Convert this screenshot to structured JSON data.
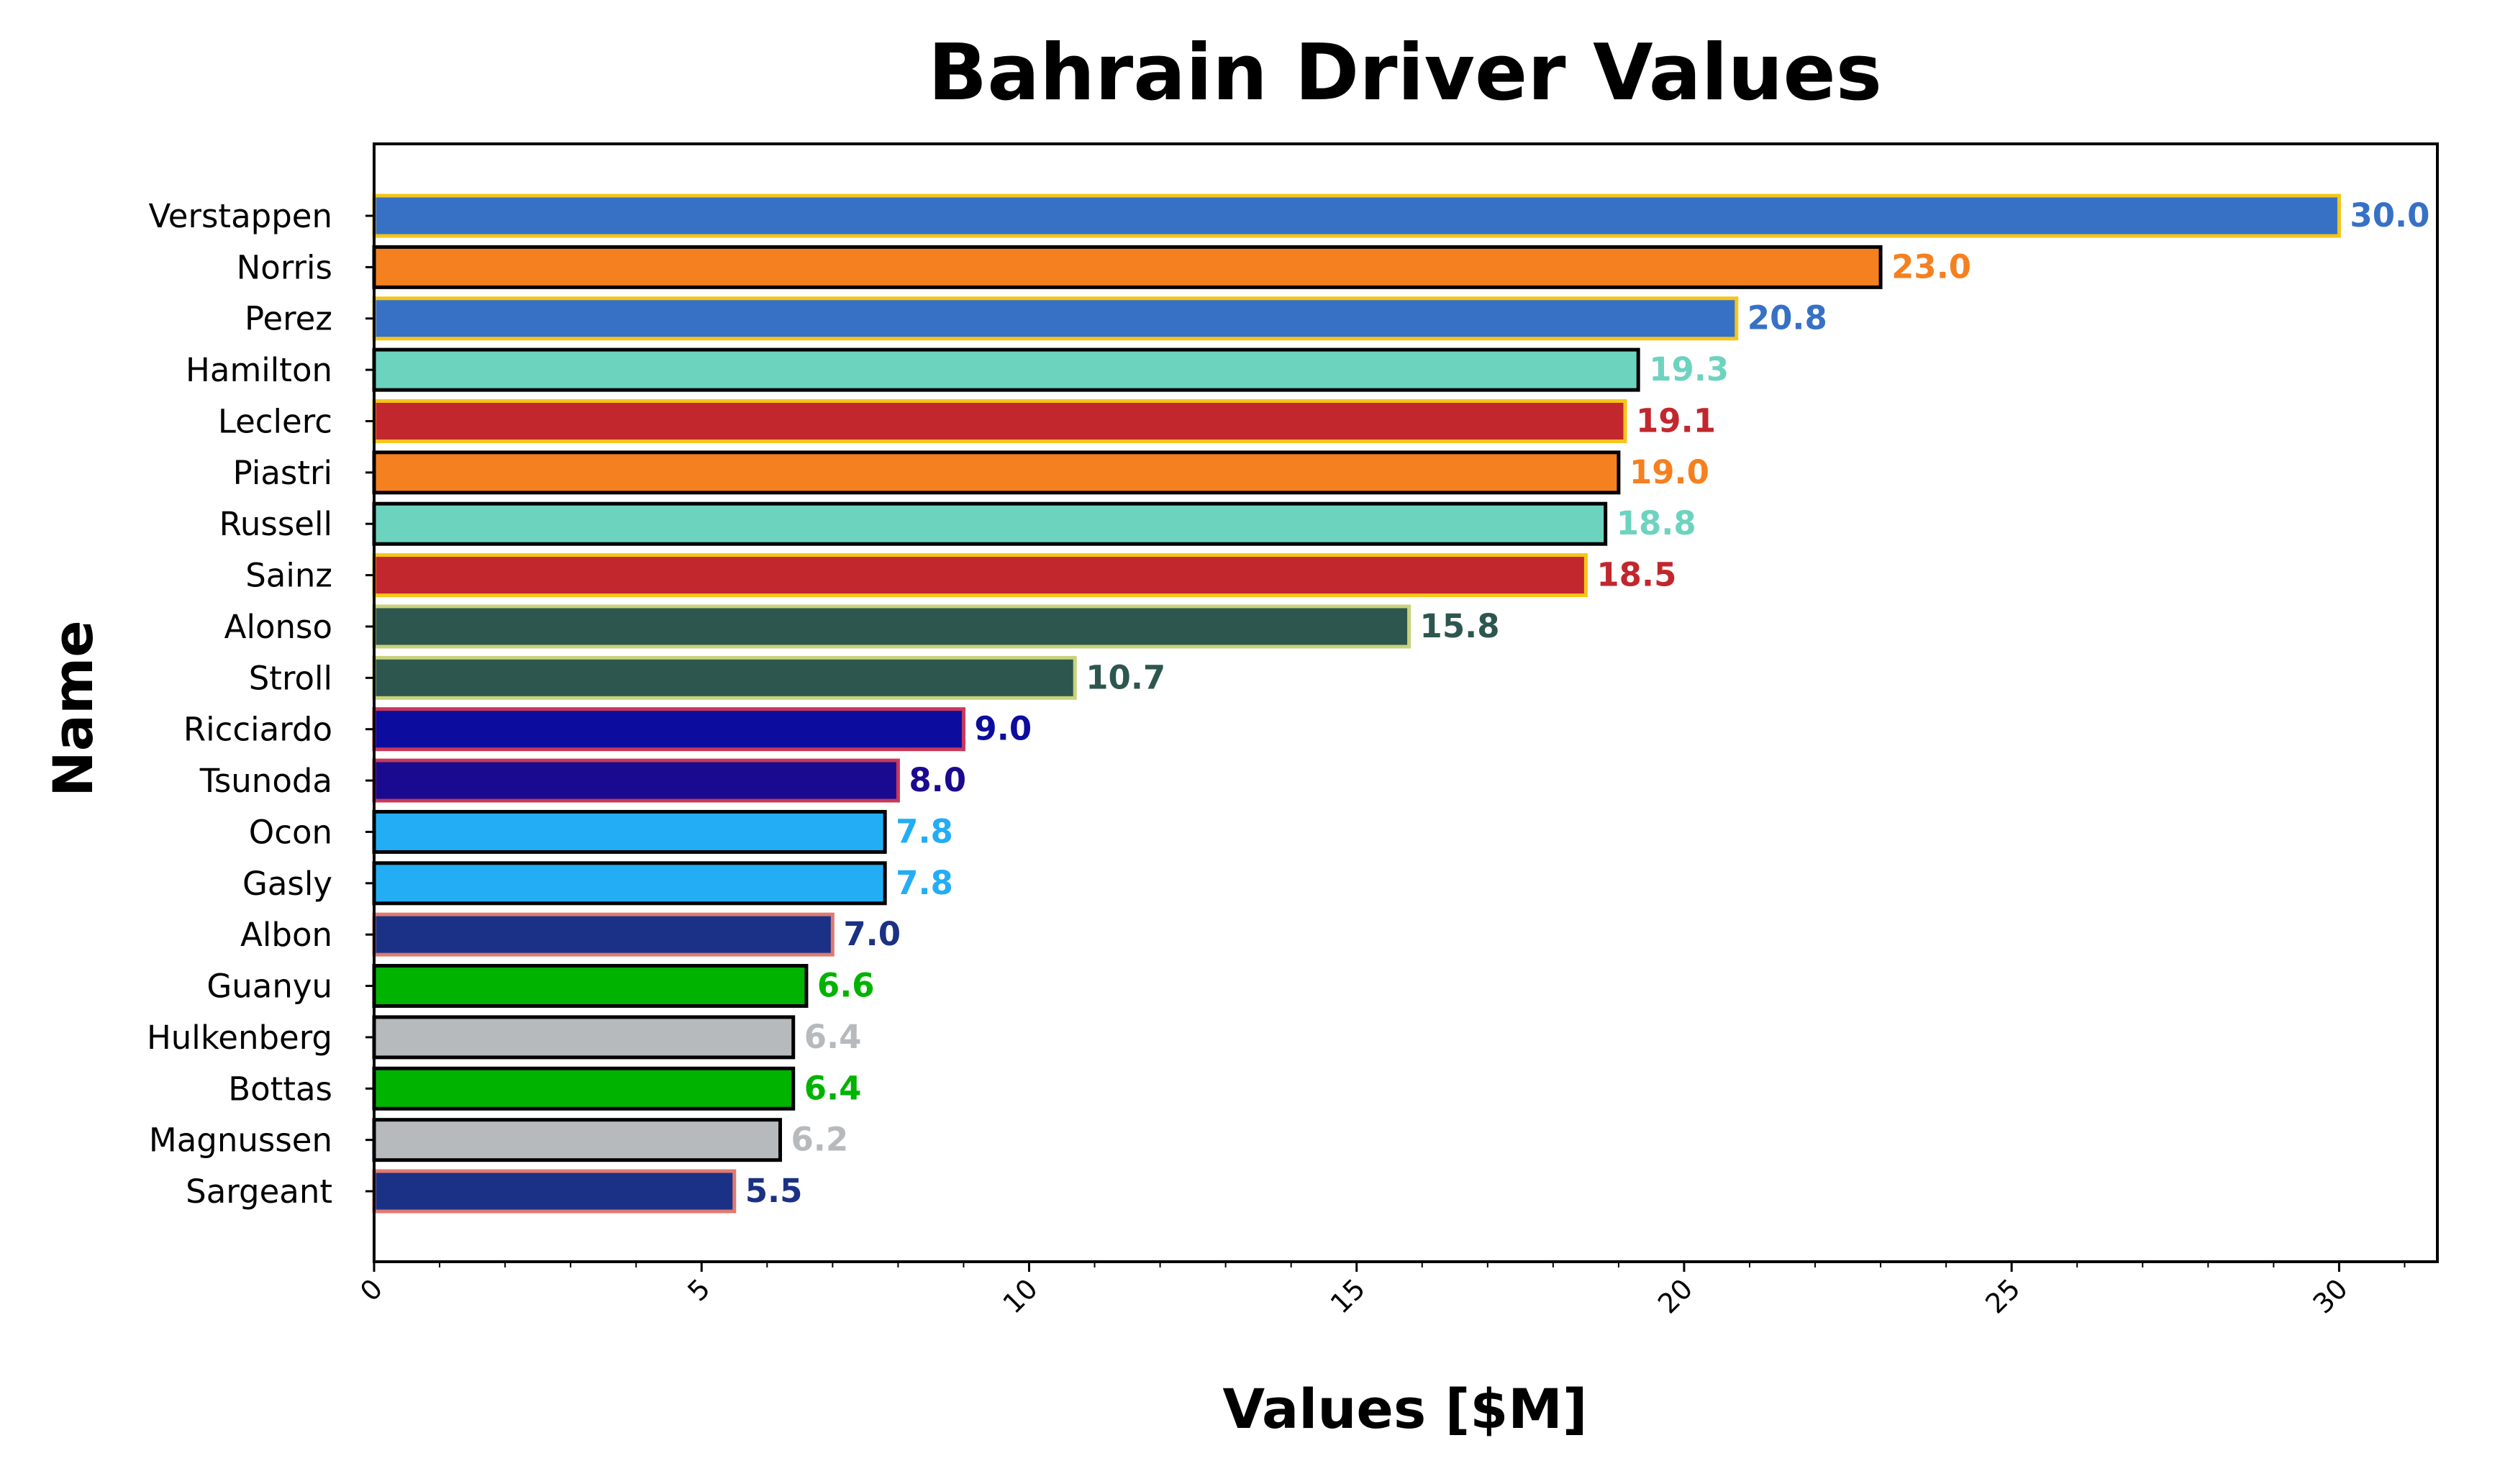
{
  "chart_data": {
    "type": "bar",
    "orientation": "horizontal",
    "title": "Bahrain Driver Values",
    "xlabel": "Values [$M]",
    "ylabel": "Name",
    "xlim": [
      0,
      31.5
    ],
    "xticks": [
      "0",
      "5",
      "10",
      "15",
      "20",
      "25",
      "30"
    ],
    "grid": false,
    "categories": [
      "Verstappen",
      "Norris",
      "Perez",
      "Hamilton",
      "Leclerc",
      "Piastri",
      "Russell",
      "Sainz",
      "Alonso",
      "Stroll",
      "Ricciardo",
      "Tsunoda",
      "Ocon",
      "Gasly",
      "Albon",
      "Guanyu",
      "Hulkenberg",
      "Bottas",
      "Magnussen",
      "Sargeant"
    ],
    "values": [
      30.0,
      23.0,
      20.8,
      19.3,
      19.1,
      19.0,
      18.8,
      18.5,
      15.8,
      10.7,
      9.0,
      8.0,
      7.8,
      7.8,
      7.0,
      6.6,
      6.4,
      6.4,
      6.2,
      5.5
    ],
    "value_labels": [
      "30.0",
      "23.0",
      "20.8",
      "19.3",
      "19.1",
      "19.0",
      "18.8",
      "18.5",
      "15.8",
      "10.7",
      "9.0",
      "8.0",
      "7.8",
      "7.8",
      "7.0",
      "6.6",
      "6.4",
      "6.4",
      "6.2",
      "5.5"
    ],
    "fill_colors": [
      "#3671C6",
      "#F58020",
      "#3671C6",
      "#6CD3BF",
      "#C1272D",
      "#F58020",
      "#6CD3BF",
      "#C1272D",
      "#2D564F",
      "#2D564F",
      "#0C0C9F",
      "#1A0A8F",
      "#22ADF5",
      "#22ADF5",
      "#1B3185",
      "#00B300",
      "#B6BABD",
      "#00B300",
      "#B6BABD",
      "#1B3185"
    ],
    "edge_colors": [
      "#F5C518",
      "#000000",
      "#F5C518",
      "#000000",
      "#F5C518",
      "#000000",
      "#000000",
      "#F5C518",
      "#C8D27A",
      "#C8D27A",
      "#C8385A",
      "#C8385A",
      "#000000",
      "#000000",
      "#E07A70",
      "#000000",
      "#000000",
      "#000000",
      "#000000",
      "#E07A70"
    ],
    "label_colors": [
      "#3671C6",
      "#F58020",
      "#3671C6",
      "#6CD3BF",
      "#C1272D",
      "#F58020",
      "#6CD3BF",
      "#C1272D",
      "#2D564F",
      "#2D564F",
      "#0C0C9F",
      "#1A0A8F",
      "#22ADF5",
      "#22ADF5",
      "#1B3185",
      "#00B300",
      "#B6BABD",
      "#00B300",
      "#B6BABD",
      "#1B3185"
    ]
  }
}
